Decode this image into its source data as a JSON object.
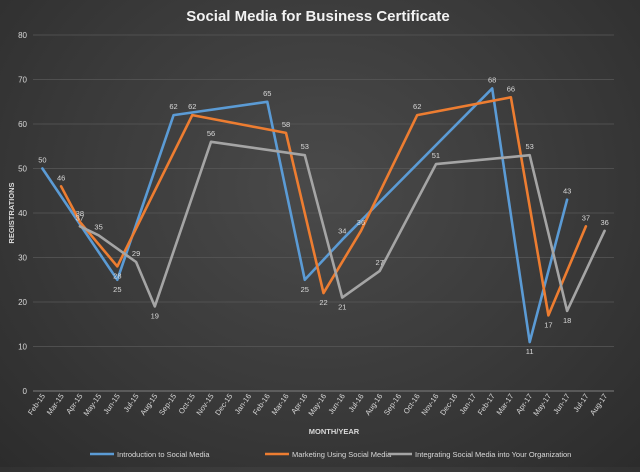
{
  "chart_data": {
    "type": "line",
    "title": "Social Media for Business Certificate",
    "xlabel": "MONTH/YEAR",
    "ylabel": "REGISTRATIONS",
    "ylim": [
      0,
      80
    ],
    "yticks": [
      0,
      10,
      20,
      30,
      40,
      50,
      60,
      70,
      80
    ],
    "grid": true,
    "legend_position": "bottom",
    "categories": [
      "Feb-15",
      "Mar-15",
      "Apr-15",
      "May-15",
      "Jun-15",
      "Jul-15",
      "Aug-15",
      "Sep-15",
      "Oct-15",
      "Nov-15",
      "Dec-15",
      "Jan-16",
      "Feb-16",
      "Mar-16",
      "Apr-16",
      "May-16",
      "Jun-16",
      "Jul-16",
      "Aug-16",
      "Sep-16",
      "Oct-16",
      "Nov-16",
      "Dec-16",
      "Jan-17",
      "Feb-17",
      "Mar-17",
      "Apr-17",
      "May-17",
      "Jun-17",
      "Jul-17",
      "Aug-17"
    ],
    "series": [
      {
        "name": "Introduction to Social Media",
        "color": "#5b9bd5",
        "points": [
          {
            "x": "Feb-15",
            "y": 50
          },
          {
            "x": "Jun-15",
            "y": 25
          },
          {
            "x": "Sep-15",
            "y": 62
          },
          {
            "x": "Feb-16",
            "y": 65
          },
          {
            "x": "Apr-16",
            "y": 25
          },
          {
            "x": "Jun-16",
            "y": 34
          },
          {
            "x": "Feb-17",
            "y": 68
          },
          {
            "x": "Apr-17",
            "y": 11
          },
          {
            "x": "Jun-17",
            "y": 43
          }
        ]
      },
      {
        "name": "Marketing Using Social Media",
        "color": "#ed7d31",
        "points": [
          {
            "x": "Mar-15",
            "y": 46
          },
          {
            "x": "Apr-15",
            "y": 38
          },
          {
            "x": "Jun-15",
            "y": 28
          },
          {
            "x": "Oct-15",
            "y": 62
          },
          {
            "x": "Mar-16",
            "y": 58
          },
          {
            "x": "May-16",
            "y": 22
          },
          {
            "x": "Jul-16",
            "y": 36
          },
          {
            "x": "Oct-16",
            "y": 62
          },
          {
            "x": "Mar-17",
            "y": 66
          },
          {
            "x": "May-17",
            "y": 17
          },
          {
            "x": "Jul-17",
            "y": 37
          }
        ]
      },
      {
        "name": "Integrating Social Media into Your Organization",
        "color": "#a5a5a5",
        "points": [
          {
            "x": "Apr-15",
            "y": 37
          },
          {
            "x": "May-15",
            "y": 35
          },
          {
            "x": "Jul-15",
            "y": 29
          },
          {
            "x": "Aug-15",
            "y": 19
          },
          {
            "x": "Nov-15",
            "y": 56
          },
          {
            "x": "Apr-16",
            "y": 53
          },
          {
            "x": "Jun-16",
            "y": 21
          },
          {
            "x": "Aug-16",
            "y": 27
          },
          {
            "x": "Nov-16",
            "y": 51
          },
          {
            "x": "Apr-17",
            "y": 53
          },
          {
            "x": "Jun-17",
            "y": 18
          },
          {
            "x": "Aug-17",
            "y": 36
          }
        ]
      }
    ]
  }
}
